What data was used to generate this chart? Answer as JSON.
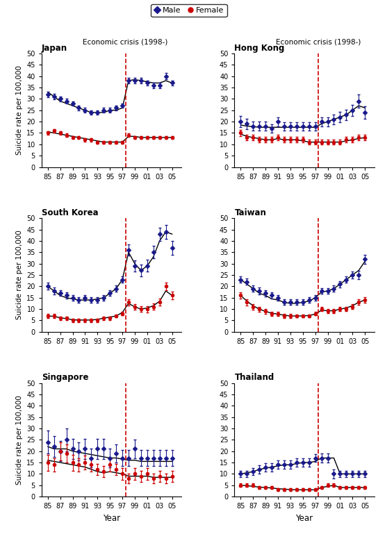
{
  "years": [
    1985,
    1986,
    1987,
    1988,
    1989,
    1990,
    1991,
    1992,
    1993,
    1994,
    1995,
    1996,
    1997,
    1998,
    1999,
    2000,
    2001,
    2002,
    2003,
    2004,
    2005
  ],
  "countries": [
    "Japan",
    "Hong Kong",
    "South Korea",
    "Taiwan",
    "Singapore",
    "Thailand"
  ],
  "male_data": {
    "Japan": [
      32,
      31,
      30,
      29,
      28,
      26,
      25,
      24,
      24,
      25,
      25,
      26,
      27,
      38,
      38,
      38,
      37,
      36,
      36,
      40,
      37
    ],
    "Hong Kong": [
      20,
      19,
      18,
      18,
      18,
      17,
      20,
      18,
      18,
      18,
      18,
      18,
      18,
      20,
      20,
      21,
      22,
      23,
      25,
      29,
      24
    ],
    "South Korea": [
      20,
      18,
      17,
      16,
      15,
      14,
      15,
      14,
      14,
      15,
      17,
      19,
      23,
      36,
      29,
      27,
      29,
      35,
      43,
      44,
      37
    ],
    "Taiwan": [
      23,
      22,
      19,
      18,
      17,
      16,
      15,
      13,
      13,
      13,
      13,
      14,
      15,
      18,
      18,
      19,
      21,
      23,
      25,
      25,
      32
    ],
    "Singapore": [
      24,
      22,
      20,
      25,
      21,
      20,
      21,
      17,
      21,
      21,
      17,
      19,
      17,
      17,
      21,
      17,
      17,
      17,
      17,
      17,
      17
    ],
    "Thailand": [
      10,
      10,
      11,
      12,
      13,
      13,
      14,
      14,
      14,
      15,
      15,
      15,
      17,
      17,
      17,
      10,
      10,
      10,
      10,
      10,
      10
    ]
  },
  "female_data": {
    "Japan": [
      15,
      16,
      15,
      14,
      13,
      13,
      12,
      12,
      11,
      11,
      11,
      11,
      11,
      14,
      13,
      13,
      13,
      13,
      13,
      13,
      13
    ],
    "Hong Kong": [
      15,
      13,
      13,
      12,
      12,
      12,
      13,
      12,
      12,
      12,
      12,
      11,
      11,
      11,
      11,
      11,
      11,
      12,
      12,
      13,
      13
    ],
    "South Korea": [
      7,
      7,
      6,
      6,
      5,
      5,
      5,
      5,
      5,
      6,
      6,
      7,
      8,
      13,
      11,
      10,
      10,
      11,
      13,
      20,
      16
    ],
    "Taiwan": [
      16,
      13,
      11,
      10,
      9,
      8,
      8,
      7,
      7,
      7,
      7,
      7,
      8,
      10,
      9,
      9,
      10,
      10,
      11,
      13,
      14
    ],
    "Singapore": [
      15,
      14,
      20,
      19,
      15,
      14,
      15,
      14,
      12,
      11,
      14,
      12,
      10,
      8,
      10,
      9,
      10,
      8,
      9,
      8,
      9
    ],
    "Thailand": [
      5,
      5,
      5,
      4,
      4,
      4,
      3,
      3,
      3,
      3,
      3,
      3,
      3,
      4,
      5,
      5,
      4,
      4,
      4,
      4,
      4
    ]
  },
  "male_err": {
    "Japan": [
      1.2,
      1.1,
      1.0,
      1.0,
      1.0,
      1.0,
      1.0,
      1.0,
      1.0,
      1.0,
      1.0,
      1.0,
      1.0,
      1.3,
      1.3,
      1.3,
      1.2,
      1.2,
      1.2,
      1.3,
      1.2
    ],
    "Hong Kong": [
      2.5,
      2.2,
      2.0,
      2.0,
      2.0,
      1.8,
      2.0,
      1.8,
      1.8,
      1.8,
      1.8,
      1.8,
      1.8,
      2.0,
      2.0,
      2.1,
      2.2,
      2.3,
      2.5,
      2.9,
      2.8
    ],
    "South Korea": [
      1.5,
      1.4,
      1.3,
      1.3,
      1.3,
      1.3,
      1.3,
      1.2,
      1.2,
      1.3,
      1.3,
      1.3,
      1.3,
      2.5,
      2.5,
      2.5,
      2.6,
      2.7,
      2.9,
      3.0,
      3.0
    ],
    "Taiwan": [
      1.5,
      1.4,
      1.4,
      1.4,
      1.4,
      1.3,
      1.2,
      1.2,
      1.2,
      1.2,
      1.2,
      1.2,
      1.2,
      1.3,
      1.3,
      1.3,
      1.4,
      1.5,
      1.6,
      1.7,
      2.0
    ],
    "Singapore": [
      5.0,
      4.5,
      4.5,
      5.0,
      4.5,
      4.0,
      4.5,
      4.0,
      4.5,
      4.5,
      4.0,
      4.0,
      3.5,
      3.5,
      4.0,
      3.5,
      3.5,
      3.5,
      3.5,
      3.5,
      3.5
    ],
    "Thailand": [
      1.5,
      1.5,
      1.5,
      1.8,
      1.8,
      1.8,
      1.8,
      1.8,
      1.8,
      1.8,
      1.8,
      1.8,
      1.8,
      2.0,
      2.0,
      2.0,
      1.5,
      1.5,
      1.5,
      1.5,
      1.5
    ]
  },
  "female_err": {
    "Japan": [
      0.8,
      0.8,
      0.8,
      0.7,
      0.7,
      0.7,
      0.7,
      0.7,
      0.6,
      0.6,
      0.6,
      0.6,
      0.6,
      0.7,
      0.7,
      0.7,
      0.7,
      0.7,
      0.7,
      0.7,
      0.7
    ],
    "Hong Kong": [
      1.5,
      1.3,
      1.3,
      1.2,
      1.2,
      1.2,
      1.3,
      1.2,
      1.2,
      1.2,
      1.2,
      1.1,
      1.1,
      1.1,
      1.1,
      1.1,
      1.1,
      1.2,
      1.2,
      1.3,
      1.3
    ],
    "South Korea": [
      0.8,
      0.8,
      0.8,
      0.7,
      0.7,
      0.7,
      0.7,
      0.7,
      0.7,
      0.7,
      0.7,
      0.7,
      0.8,
      1.3,
      1.3,
      1.3,
      1.4,
      1.4,
      1.5,
      1.6,
      1.6
    ],
    "Taiwan": [
      1.5,
      1.3,
      1.2,
      1.1,
      1.0,
      0.9,
      0.9,
      0.8,
      0.8,
      0.7,
      0.7,
      0.7,
      0.8,
      0.9,
      0.9,
      0.9,
      1.0,
      1.0,
      1.1,
      1.2,
      1.3
    ],
    "Singapore": [
      3.5,
      3.0,
      4.0,
      4.0,
      3.5,
      3.0,
      3.0,
      3.0,
      2.5,
      2.5,
      3.0,
      2.5,
      2.5,
      2.0,
      2.5,
      2.5,
      2.5,
      2.0,
      2.5,
      2.0,
      2.5
    ],
    "Thailand": [
      0.8,
      0.8,
      0.8,
      0.7,
      0.7,
      0.7,
      0.6,
      0.6,
      0.6,
      0.6,
      0.6,
      0.6,
      0.6,
      0.7,
      0.8,
      0.8,
      0.7,
      0.7,
      0.7,
      0.7,
      0.7
    ]
  },
  "male_trend": {
    "Japan": [
      33,
      31,
      29,
      28,
      27,
      26,
      25,
      24,
      24,
      24,
      25,
      25,
      26,
      38,
      38.5,
      38,
      37.5,
      37,
      37,
      38,
      37
    ],
    "Hong Kong": [
      18.5,
      18,
      17.8,
      17.5,
      17.5,
      17.5,
      17.5,
      17.5,
      17.5,
      17.5,
      17.5,
      17.5,
      17.5,
      19,
      20,
      21,
      22,
      23,
      25,
      27,
      26
    ],
    "South Korea": [
      20,
      18,
      16,
      15,
      14.5,
      14,
      14,
      14,
      14.5,
      15,
      17,
      19,
      23,
      35,
      30,
      27,
      29,
      33,
      40,
      44,
      43
    ],
    "Taiwan": [
      23,
      21,
      19,
      17,
      16,
      14.5,
      14,
      13,
      12.5,
      12.5,
      13,
      13.5,
      15,
      17.5,
      18,
      19,
      21,
      23,
      25,
      27,
      31
    ],
    "Singapore": [
      22,
      21,
      21,
      21,
      20,
      19.5,
      19,
      18.5,
      18,
      17.5,
      17,
      17,
      16.5,
      16,
      16,
      15.5,
      15.5,
      15.5,
      15.5,
      15.5,
      15.5
    ],
    "Thailand": [
      10,
      10.5,
      11,
      12,
      12.5,
      13,
      13.5,
      14,
      14,
      14.5,
      15,
      15,
      15.5,
      17,
      17,
      17,
      10,
      10,
      10,
      10,
      10
    ]
  },
  "female_trend": {
    "Japan": [
      15.5,
      15,
      14.5,
      14,
      13.5,
      13,
      12.5,
      12,
      11.5,
      11,
      11,
      11,
      11,
      13.5,
      13.5,
      13,
      13,
      13,
      13,
      13,
      13
    ],
    "Hong Kong": [
      14.5,
      13.5,
      13,
      12.5,
      12,
      12,
      12.5,
      12,
      12,
      12,
      11.5,
      11,
      11,
      11,
      11,
      11,
      11,
      11.5,
      12,
      12.5,
      13
    ],
    "South Korea": [
      7,
      6.8,
      6.2,
      5.8,
      5.3,
      5.2,
      5.2,
      5.2,
      5.5,
      6,
      6.5,
      7,
      8.5,
      12.5,
      11,
      10,
      10.5,
      11.5,
      13.5,
      18,
      16
    ],
    "Taiwan": [
      16,
      13.5,
      11.5,
      10,
      9,
      8.2,
      7.8,
      7.3,
      7,
      7,
      7,
      7.2,
      7.8,
      9.5,
      9.3,
      9.3,
      10,
      10.5,
      11.5,
      13,
      14
    ],
    "Singapore": [
      16,
      15.5,
      15,
      14.5,
      14,
      13.5,
      13,
      12,
      11,
      10.5,
      11,
      10.5,
      10,
      9,
      9,
      9,
      9,
      8.5,
      8.5,
      8.5,
      8.5
    ],
    "Thailand": [
      5,
      4.8,
      4.5,
      4.2,
      4,
      3.8,
      3.5,
      3.3,
      3.1,
      3,
      3,
      3,
      3,
      4,
      4.5,
      5,
      4,
      4,
      4,
      4,
      4
    ]
  },
  "ylim": [
    0,
    50
  ],
  "yticks": [
    0,
    5,
    10,
    15,
    20,
    25,
    30,
    35,
    40,
    45,
    50
  ],
  "crisis_year": 1997.5,
  "male_color": "#1a1a8c",
  "female_color": "#cc0000",
  "trend_color": "#000000",
  "crisis_color": "#cc0000"
}
